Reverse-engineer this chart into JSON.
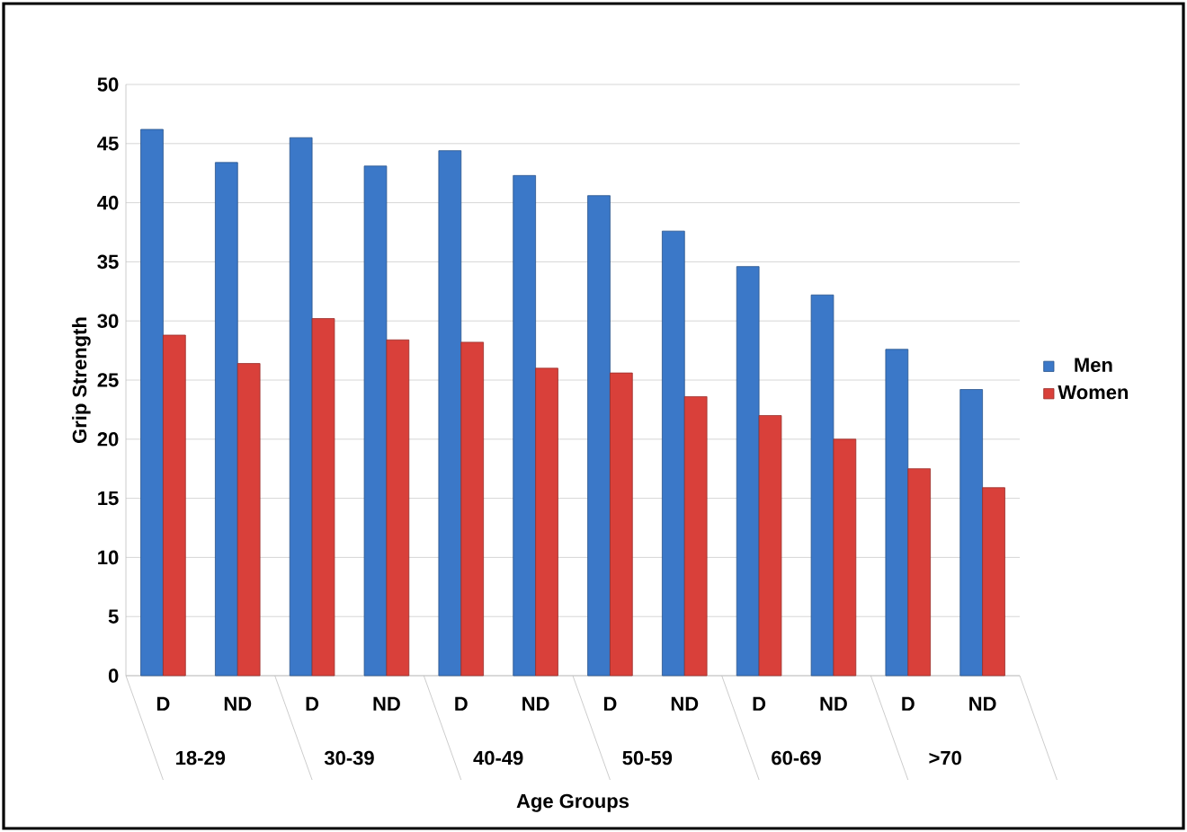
{
  "chart_data": {
    "type": "bar",
    "xlabel": "Age Groups",
    "ylabel": "Grip Strength",
    "categories": [
      "D",
      "ND",
      "D",
      "ND",
      "D",
      "ND",
      "D",
      "ND",
      "D",
      "ND",
      "D",
      "ND"
    ],
    "annotations": [
      "18-29",
      "30-39",
      "40-49",
      "50-59",
      "60-69",
      ">70"
    ],
    "series": [
      {
        "name": "Men",
        "color": "#3b78c8",
        "values": [
          46.2,
          43.4,
          45.5,
          43.1,
          44.4,
          42.3,
          40.6,
          37.6,
          34.6,
          32.2,
          27.6,
          24.2
        ]
      },
      {
        "name": "Women",
        "color": "#d9403a",
        "values": [
          28.8,
          26.4,
          30.2,
          28.4,
          28.2,
          26.0,
          25.6,
          23.6,
          22.0,
          20.0,
          17.5,
          15.9
        ]
      }
    ],
    "ylim": [
      0,
      50
    ],
    "yticks": [
      0,
      5,
      10,
      15,
      20,
      25,
      30,
      35,
      40,
      45,
      50
    ],
    "grid": "y",
    "legend": "right"
  }
}
